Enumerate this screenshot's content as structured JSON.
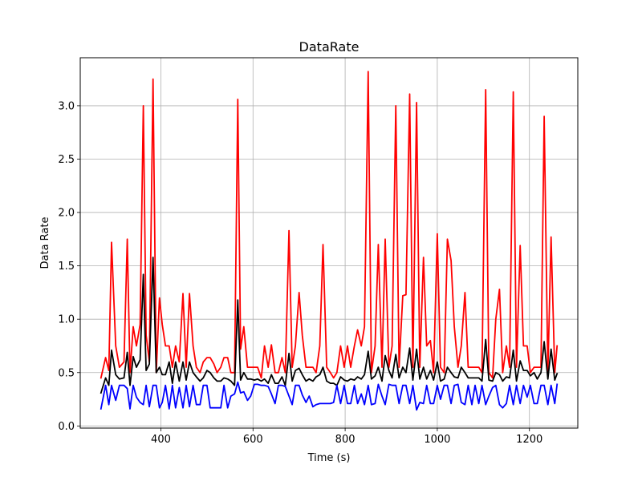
{
  "chart_data": {
    "type": "line",
    "title": "DataRate",
    "xlabel": "Time (s)",
    "ylabel": "Data Rate",
    "xlim": [
      225,
      1305
    ],
    "ylim": [
      -0.02,
      3.45
    ],
    "x_ticks": [
      400,
      600,
      800,
      1000,
      1200
    ],
    "x_tick_labels": [
      "400",
      "600",
      "800",
      "1000",
      "1200"
    ],
    "y_ticks": [
      0.0,
      0.5,
      1.0,
      1.5,
      2.0,
      2.5,
      3.0
    ],
    "y_tick_labels": [
      "0.0",
      "0.5",
      "1.0",
      "1.5",
      "2.0",
      "2.5",
      "3.0"
    ],
    "grid": true,
    "legend": "none",
    "series": [
      {
        "color": "#ff0000",
        "x": [
          270,
          280,
          287,
          293,
          302,
          310,
          320,
          327,
          333,
          340,
          347,
          355,
          362,
          368,
          375,
          383,
          390,
          397,
          403,
          410,
          418,
          425,
          432,
          440,
          448,
          455,
          462,
          470,
          477,
          485,
          492,
          500,
          507,
          515,
          522,
          530,
          537,
          545,
          552,
          560,
          567,
          573,
          580,
          588,
          595,
          603,
          610,
          618,
          625,
          633,
          640,
          648,
          655,
          663,
          670,
          678,
          685,
          692,
          700,
          707,
          715,
          722,
          730,
          737,
          745,
          752,
          760,
          768,
          775,
          782,
          790,
          798,
          805,
          812,
          820,
          827,
          835,
          842,
          850,
          857,
          865,
          872,
          880,
          887,
          895,
          902,
          910,
          917,
          925,
          932,
          940,
          947,
          955,
          962,
          970,
          977,
          985,
          992,
          1000,
          1007,
          1015,
          1022,
          1030,
          1037,
          1045,
          1052,
          1060,
          1067,
          1075,
          1082,
          1090,
          1097,
          1105,
          1112,
          1120,
          1127,
          1135,
          1142,
          1150,
          1157,
          1165,
          1172,
          1180,
          1187,
          1195,
          1202,
          1210,
          1217,
          1225,
          1232,
          1240,
          1247,
          1255,
          1260
        ],
        "y": [
          0.45,
          0.64,
          0.52,
          1.72,
          0.75,
          0.55,
          0.6,
          1.75,
          0.5,
          0.93,
          0.75,
          0.95,
          3.0,
          0.85,
          0.6,
          3.25,
          0.5,
          1.2,
          0.95,
          0.75,
          0.75,
          0.55,
          0.75,
          0.6,
          1.24,
          0.55,
          1.24,
          0.75,
          0.55,
          0.5,
          0.6,
          0.64,
          0.64,
          0.58,
          0.5,
          0.55,
          0.64,
          0.64,
          0.5,
          0.5,
          3.06,
          0.72,
          0.93,
          0.55,
          0.55,
          0.55,
          0.55,
          0.45,
          0.75,
          0.55,
          0.76,
          0.5,
          0.5,
          0.64,
          0.5,
          1.83,
          0.55,
          0.75,
          1.25,
          0.85,
          0.55,
          0.55,
          0.55,
          0.5,
          0.75,
          1.7,
          0.55,
          0.5,
          0.45,
          0.5,
          0.75,
          0.55,
          0.75,
          0.55,
          0.75,
          0.9,
          0.75,
          0.93,
          3.32,
          0.5,
          0.75,
          1.7,
          0.55,
          1.75,
          0.55,
          0.75,
          3.0,
          0.55,
          1.22,
          1.23,
          3.11,
          0.55,
          3.03,
          0.55,
          1.58,
          0.75,
          0.8,
          0.5,
          1.8,
          0.55,
          0.5,
          1.75,
          1.55,
          0.93,
          0.55,
          0.75,
          1.25,
          0.55,
          0.55,
          0.55,
          0.55,
          0.5,
          3.15,
          0.5,
          0.45,
          1.0,
          1.28,
          0.5,
          0.75,
          0.55,
          3.13,
          0.55,
          1.69,
          0.75,
          0.75,
          0.5,
          0.55,
          0.55,
          0.55,
          2.9,
          0.5,
          1.77,
          0.5,
          0.75
        ]
      },
      {
        "color": "#000000",
        "x": [
          270,
          280,
          287,
          293,
          302,
          310,
          320,
          327,
          333,
          340,
          347,
          355,
          362,
          368,
          375,
          383,
          390,
          397,
          403,
          410,
          418,
          425,
          432,
          440,
          448,
          455,
          462,
          470,
          477,
          485,
          492,
          500,
          507,
          515,
          522,
          530,
          537,
          545,
          552,
          560,
          567,
          573,
          580,
          588,
          595,
          603,
          610,
          618,
          625,
          633,
          640,
          648,
          655,
          663,
          670,
          678,
          685,
          692,
          700,
          707,
          715,
          722,
          730,
          737,
          745,
          752,
          760,
          768,
          775,
          782,
          790,
          798,
          805,
          812,
          820,
          827,
          835,
          842,
          850,
          857,
          865,
          872,
          880,
          887,
          895,
          902,
          910,
          917,
          925,
          932,
          940,
          947,
          955,
          962,
          970,
          977,
          985,
          992,
          1000,
          1007,
          1015,
          1022,
          1030,
          1037,
          1045,
          1052,
          1060,
          1067,
          1075,
          1082,
          1090,
          1097,
          1105,
          1112,
          1120,
          1127,
          1135,
          1142,
          1150,
          1157,
          1165,
          1172,
          1180,
          1187,
          1195,
          1202,
          1210,
          1217,
          1225,
          1232,
          1240,
          1247,
          1255,
          1260
        ],
        "y": [
          0.31,
          0.45,
          0.38,
          0.71,
          0.48,
          0.44,
          0.45,
          0.69,
          0.38,
          0.65,
          0.55,
          0.62,
          1.42,
          0.52,
          0.58,
          1.58,
          0.5,
          0.55,
          0.48,
          0.48,
          0.6,
          0.4,
          0.6,
          0.42,
          0.6,
          0.43,
          0.6,
          0.5,
          0.46,
          0.42,
          0.45,
          0.52,
          0.5,
          0.45,
          0.42,
          0.42,
          0.45,
          0.44,
          0.42,
          0.38,
          1.18,
          0.43,
          0.5,
          0.44,
          0.44,
          0.43,
          0.44,
          0.42,
          0.44,
          0.4,
          0.48,
          0.4,
          0.4,
          0.46,
          0.38,
          0.68,
          0.42,
          0.52,
          0.54,
          0.48,
          0.42,
          0.44,
          0.42,
          0.46,
          0.48,
          0.55,
          0.42,
          0.4,
          0.4,
          0.38,
          0.46,
          0.43,
          0.42,
          0.44,
          0.43,
          0.46,
          0.44,
          0.48,
          0.7,
          0.44,
          0.47,
          0.55,
          0.42,
          0.66,
          0.52,
          0.45,
          0.67,
          0.45,
          0.55,
          0.5,
          0.73,
          0.43,
          0.72,
          0.44,
          0.55,
          0.44,
          0.52,
          0.43,
          0.6,
          0.42,
          0.44,
          0.55,
          0.5,
          0.46,
          0.45,
          0.55,
          0.5,
          0.45,
          0.45,
          0.45,
          0.45,
          0.42,
          0.81,
          0.43,
          0.42,
          0.5,
          0.48,
          0.42,
          0.46,
          0.45,
          0.71,
          0.42,
          0.61,
          0.52,
          0.52,
          0.47,
          0.5,
          0.44,
          0.5,
          0.79,
          0.44,
          0.72,
          0.43,
          0.49
        ]
      },
      {
        "color": "#0000ff",
        "x": [
          270,
          280,
          287,
          293,
          302,
          310,
          320,
          327,
          333,
          340,
          347,
          355,
          362,
          368,
          375,
          383,
          390,
          397,
          403,
          410,
          418,
          425,
          432,
          440,
          448,
          455,
          462,
          470,
          477,
          485,
          492,
          500,
          507,
          515,
          522,
          530,
          537,
          545,
          552,
          560,
          567,
          573,
          580,
          588,
          595,
          603,
          610,
          618,
          625,
          633,
          640,
          648,
          655,
          663,
          670,
          678,
          685,
          692,
          700,
          707,
          715,
          722,
          730,
          737,
          745,
          752,
          760,
          768,
          775,
          782,
          790,
          798,
          805,
          812,
          820,
          827,
          835,
          842,
          850,
          857,
          865,
          872,
          880,
          887,
          895,
          902,
          910,
          917,
          925,
          932,
          940,
          947,
          955,
          962,
          970,
          977,
          985,
          992,
          1000,
          1007,
          1015,
          1022,
          1030,
          1037,
          1045,
          1052,
          1060,
          1067,
          1075,
          1082,
          1090,
          1097,
          1105,
          1112,
          1120,
          1127,
          1135,
          1142,
          1150,
          1157,
          1165,
          1172,
          1180,
          1187,
          1195,
          1202,
          1210,
          1217,
          1225,
          1232,
          1240,
          1247,
          1255,
          1260
        ],
        "y": [
          0.16,
          0.38,
          0.2,
          0.38,
          0.24,
          0.38,
          0.38,
          0.35,
          0.16,
          0.38,
          0.27,
          0.22,
          0.2,
          0.38,
          0.18,
          0.38,
          0.38,
          0.17,
          0.22,
          0.38,
          0.16,
          0.38,
          0.17,
          0.36,
          0.17,
          0.38,
          0.18,
          0.38,
          0.2,
          0.2,
          0.38,
          0.38,
          0.17,
          0.17,
          0.17,
          0.17,
          0.38,
          0.17,
          0.28,
          0.3,
          0.41,
          0.31,
          0.32,
          0.24,
          0.28,
          0.39,
          0.39,
          0.38,
          0.38,
          0.37,
          0.3,
          0.21,
          0.38,
          0.38,
          0.37,
          0.28,
          0.2,
          0.38,
          0.38,
          0.29,
          0.22,
          0.28,
          0.18,
          0.2,
          0.21,
          0.21,
          0.21,
          0.21,
          0.22,
          0.38,
          0.21,
          0.38,
          0.21,
          0.21,
          0.38,
          0.21,
          0.3,
          0.2,
          0.38,
          0.2,
          0.21,
          0.39,
          0.28,
          0.2,
          0.39,
          0.38,
          0.38,
          0.21,
          0.38,
          0.38,
          0.21,
          0.38,
          0.15,
          0.22,
          0.21,
          0.38,
          0.21,
          0.21,
          0.38,
          0.25,
          0.38,
          0.38,
          0.21,
          0.38,
          0.39,
          0.22,
          0.2,
          0.38,
          0.2,
          0.38,
          0.21,
          0.38,
          0.2,
          0.28,
          0.36,
          0.38,
          0.2,
          0.17,
          0.21,
          0.38,
          0.2,
          0.38,
          0.21,
          0.38,
          0.27,
          0.38,
          0.21,
          0.21,
          0.38,
          0.38,
          0.2,
          0.38,
          0.21,
          0.39
        ]
      }
    ]
  }
}
